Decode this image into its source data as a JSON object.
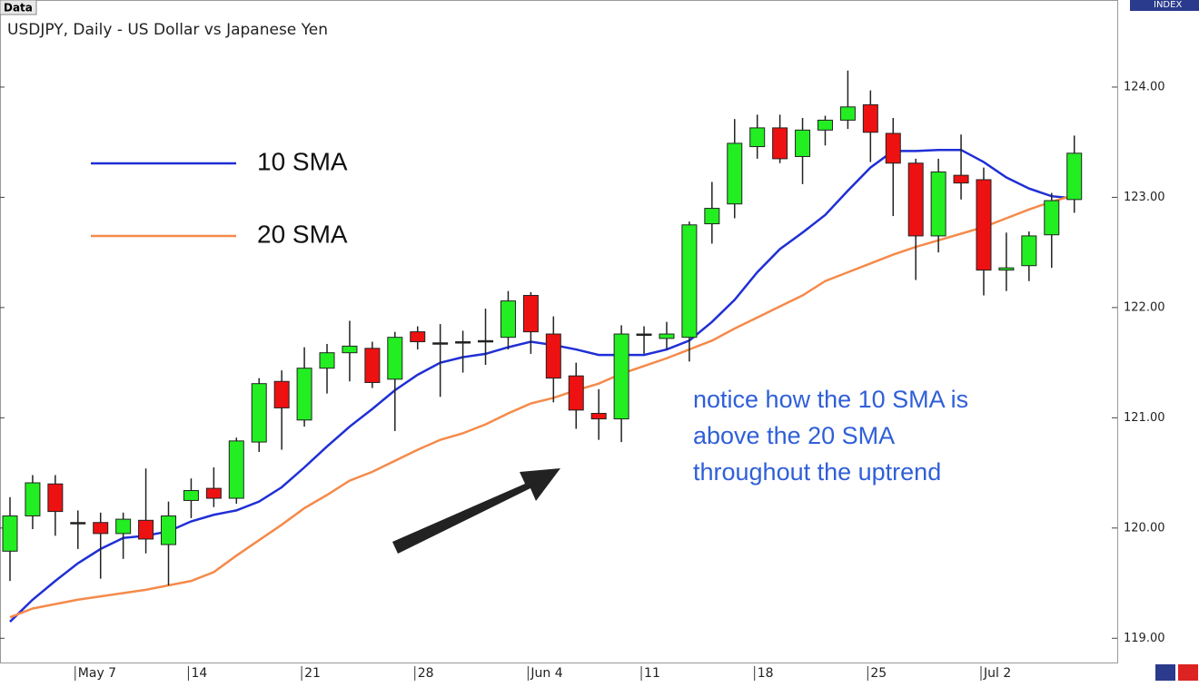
{
  "tab_label": "Data",
  "side_tab_label": "INDEX",
  "chart_data": {
    "type": "candlestick",
    "title": "USDJPY, Daily - US Dollar vs Japanese Yen",
    "categories": [
      null,
      null,
      null,
      "May 7",
      null,
      null,
      null,
      null,
      "14",
      null,
      null,
      null,
      null,
      "21",
      null,
      null,
      null,
      null,
      "28",
      null,
      null,
      null,
      null,
      "Jun 4",
      null,
      null,
      null,
      null,
      "11",
      null,
      null,
      null,
      null,
      "18",
      null,
      null,
      null,
      null,
      "25",
      null,
      null,
      null,
      null,
      "Jul 2",
      null,
      null,
      null,
      null
    ],
    "open": [
      119.79,
      120.11,
      120.4,
      120.05,
      120.05,
      119.95,
      120.07,
      119.85,
      120.25,
      120.36,
      120.27,
      120.78,
      121.33,
      120.98,
      121.45,
      121.59,
      121.63,
      121.35,
      121.78,
      121.68,
      121.69,
      121.7,
      121.73,
      122.11,
      121.76,
      121.38,
      121.04,
      120.99,
      121.76,
      121.72,
      121.73,
      122.76,
      122.94,
      123.46,
      123.63,
      123.37,
      123.61,
      123.7,
      123.84,
      123.58,
      123.31,
      122.65,
      123.2,
      123.16,
      122.34,
      122.38,
      122.66,
      122.98
    ],
    "high": [
      120.28,
      120.48,
      120.48,
      120.16,
      120.14,
      120.14,
      120.54,
      120.24,
      120.45,
      120.55,
      120.82,
      121.36,
      121.43,
      121.64,
      121.67,
      121.88,
      121.69,
      121.78,
      121.83,
      121.85,
      121.79,
      121.99,
      122.15,
      122.14,
      121.92,
      121.5,
      121.26,
      121.84,
      121.83,
      121.87,
      122.78,
      123.14,
      123.71,
      123.75,
      123.75,
      123.72,
      123.74,
      124.15,
      123.97,
      123.72,
      123.35,
      123.35,
      123.57,
      123.27,
      122.68,
      122.69,
      123.04,
      123.56
    ],
    "low": [
      119.52,
      119.99,
      119.93,
      119.81,
      119.54,
      119.72,
      119.77,
      119.48,
      120.09,
      120.19,
      120.22,
      120.69,
      120.71,
      120.92,
      121.22,
      121.33,
      121.27,
      120.88,
      121.62,
      121.19,
      121.41,
      121.48,
      121.62,
      121.58,
      121.14,
      120.9,
      120.8,
      120.78,
      121.58,
      121.62,
      121.51,
      122.58,
      122.81,
      123.35,
      123.31,
      123.12,
      123.47,
      123.62,
      123.32,
      122.83,
      122.25,
      122.5,
      122.98,
      122.11,
      122.15,
      122.24,
      122.36,
      122.86
    ],
    "close": [
      120.11,
      120.41,
      120.15,
      120.05,
      119.95,
      120.08,
      119.9,
      120.11,
      120.34,
      120.27,
      120.79,
      121.31,
      121.09,
      121.45,
      121.59,
      121.65,
      121.32,
      121.73,
      121.69,
      121.68,
      121.69,
      121.7,
      122.06,
      121.78,
      121.36,
      121.07,
      120.99,
      121.76,
      121.76,
      121.76,
      122.75,
      122.9,
      123.49,
      123.63,
      123.35,
      123.61,
      123.7,
      123.82,
      123.59,
      123.31,
      122.65,
      123.23,
      123.13,
      122.34,
      122.36,
      122.65,
      122.97,
      123.4
    ],
    "up_color": "#22ee22",
    "down_color": "#ee1111",
    "series": [
      {
        "name": "10 SMA",
        "color": "#1f2fd6",
        "values": [
          119.15,
          119.35,
          119.52,
          119.68,
          119.81,
          119.91,
          119.93,
          119.97,
          120.06,
          120.12,
          120.16,
          120.24,
          120.37,
          120.55,
          120.74,
          120.92,
          121.08,
          121.25,
          121.39,
          121.5,
          121.55,
          121.58,
          121.64,
          121.69,
          121.66,
          121.62,
          121.57,
          121.57,
          121.57,
          121.62,
          121.7,
          121.87,
          122.07,
          122.32,
          122.53,
          122.68,
          122.84,
          123.06,
          123.27,
          123.42,
          123.42,
          123.43,
          123.43,
          123.32,
          123.18,
          123.08,
          123.01,
          122.99
        ]
      },
      {
        "name": "20 SMA",
        "color": "#f58a4a",
        "values": [
          119.19,
          119.27,
          119.31,
          119.35,
          119.38,
          119.41,
          119.44,
          119.48,
          119.52,
          119.6,
          119.75,
          119.89,
          120.03,
          120.18,
          120.3,
          120.43,
          120.51,
          120.61,
          120.71,
          120.8,
          120.86,
          120.94,
          121.04,
          121.13,
          121.18,
          121.25,
          121.31,
          121.4,
          121.47,
          121.54,
          121.62,
          121.7,
          121.81,
          121.91,
          122.01,
          122.11,
          122.24,
          122.32,
          122.4,
          122.48,
          122.55,
          122.61,
          122.67,
          122.73,
          122.81,
          122.89,
          122.96,
          123.02
        ]
      }
    ],
    "ylim": [
      118.78,
      124.79
    ],
    "yticks": [
      {
        "value": 119,
        "label": "119.00"
      },
      {
        "value": 120,
        "label": "120.00"
      },
      {
        "value": 121,
        "label": "121.00"
      },
      {
        "value": 122,
        "label": "122.00"
      },
      {
        "value": 123,
        "label": "123.00"
      },
      {
        "value": 124,
        "label": "124.00"
      }
    ],
    "annotation": [
      "notice how the 10 SMA is",
      "above the 20 SMA",
      "throughout the uptrend"
    ]
  }
}
